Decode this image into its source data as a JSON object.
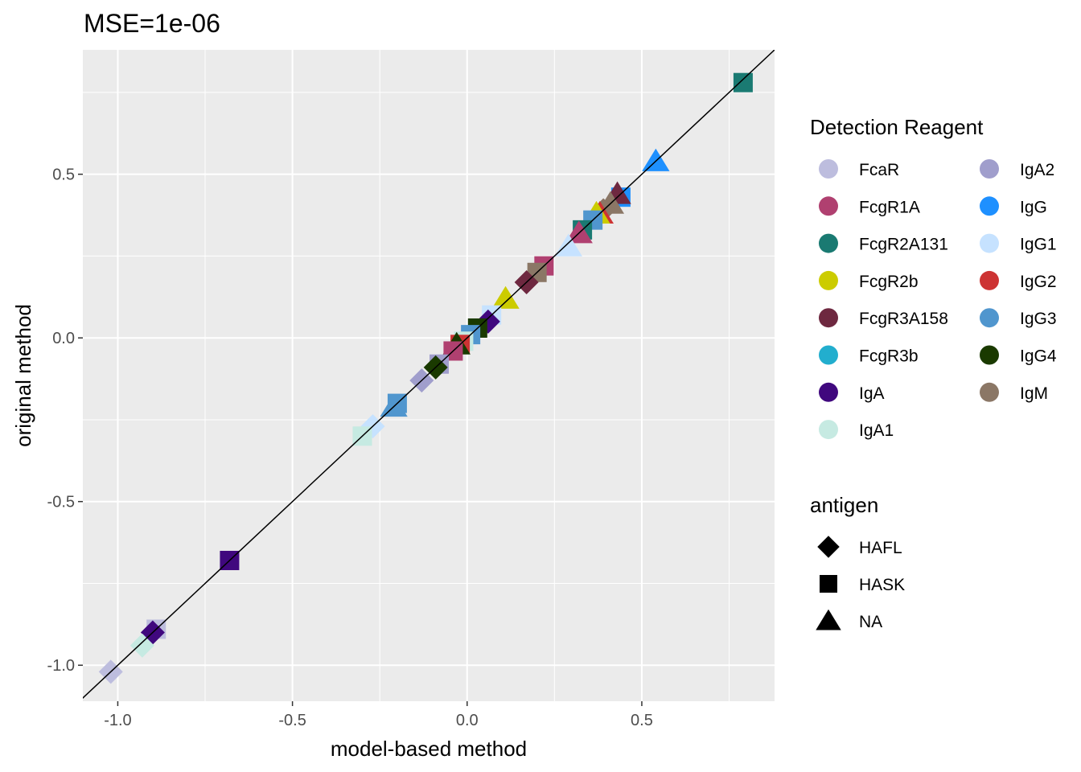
{
  "chart_data": {
    "type": "scatter",
    "title": "MSE=1e-06",
    "xlabel": "model-based method",
    "ylabel": "original method",
    "xlim": [
      -1.1,
      0.88
    ],
    "ylim": [
      -1.11,
      0.88
    ],
    "x_ticks": [
      -1.0,
      -0.5,
      0.0,
      0.5
    ],
    "x_tick_labels": [
      "-1.0",
      "-0.5",
      "0.0",
      "0.5"
    ],
    "y_ticks": [
      -1.0,
      -0.5,
      0.0,
      0.5
    ],
    "y_tick_labels": [
      "-1.0",
      "-0.5",
      "0.0",
      "0.5"
    ],
    "grid": true,
    "reference_line": {
      "slope": 1,
      "intercept": 0
    },
    "legends": {
      "color": {
        "title": "Detection Reagent",
        "placement": "right",
        "entries": [
          {
            "label": "FcaR",
            "color": "#BDBDDE"
          },
          {
            "label": "FcgR1A",
            "color": "#B04070"
          },
          {
            "label": "FcgR2A131",
            "color": "#1A7A72"
          },
          {
            "label": "FcgR2b",
            "color": "#CCCC00"
          },
          {
            "label": "FcgR3A158",
            "color": "#6E2840"
          },
          {
            "label": "FcgR3b",
            "color": "#22AECE"
          },
          {
            "label": "IgA",
            "color": "#40087E"
          },
          {
            "label": "IgA1",
            "color": "#C6EAE2"
          },
          {
            "label": "IgA2",
            "color": "#A09ECC"
          },
          {
            "label": "IgG",
            "color": "#1E90FF"
          },
          {
            "label": "IgG1",
            "color": "#C6E2FF"
          },
          {
            "label": "IgG2",
            "color": "#CD3333"
          },
          {
            "label": "IgG3",
            "color": "#5096CE"
          },
          {
            "label": "IgG4",
            "color": "#1A3A00"
          },
          {
            "label": "IgM",
            "color": "#8B7766"
          }
        ]
      },
      "shape": {
        "title": "antigen",
        "placement": "right",
        "entries": [
          {
            "label": "HAFL",
            "shape": "diamond"
          },
          {
            "label": "HASK",
            "shape": "square"
          },
          {
            "label": "NA",
            "shape": "triangle"
          }
        ]
      }
    },
    "points": [
      {
        "x": 0.79,
        "y": 0.78,
        "color": "#1A7A72",
        "shape": "square"
      },
      {
        "x": 0.54,
        "y": 0.54,
        "color": "#1E90FF",
        "shape": "triangle"
      },
      {
        "x": 0.44,
        "y": 0.43,
        "color": "#1E90FF",
        "shape": "square"
      },
      {
        "x": 0.43,
        "y": 0.44,
        "color": "#6E2840",
        "shape": "triangle"
      },
      {
        "x": 0.41,
        "y": 0.41,
        "color": "#8B7766",
        "shape": "triangle"
      },
      {
        "x": 0.39,
        "y": 0.39,
        "color": "#8B7766",
        "shape": "diamond"
      },
      {
        "x": 0.38,
        "y": 0.38,
        "color": "#CD3333",
        "shape": "triangle"
      },
      {
        "x": 0.37,
        "y": 0.38,
        "color": "#CCCC00",
        "shape": "triangle"
      },
      {
        "x": 0.36,
        "y": 0.36,
        "color": "#5096CE",
        "shape": "square"
      },
      {
        "x": 0.33,
        "y": 0.33,
        "color": "#1A7A72",
        "shape": "square"
      },
      {
        "x": 0.32,
        "y": 0.32,
        "color": "#B04070",
        "shape": "triangle"
      },
      {
        "x": 0.29,
        "y": 0.28,
        "color": "#C6E2FF",
        "shape": "triangle"
      },
      {
        "x": 0.22,
        "y": 0.22,
        "color": "#B04070",
        "shape": "square"
      },
      {
        "x": 0.2,
        "y": 0.2,
        "color": "#8B7766",
        "shape": "square"
      },
      {
        "x": 0.17,
        "y": 0.17,
        "color": "#6E2840",
        "shape": "diamond"
      },
      {
        "x": 0.11,
        "y": 0.12,
        "color": "#CCCC00",
        "shape": "triangle"
      },
      {
        "x": 0.07,
        "y": 0.07,
        "color": "#C6E2FF",
        "shape": "square"
      },
      {
        "x": 0.06,
        "y": 0.05,
        "color": "#40087E",
        "shape": "diamond"
      },
      {
        "x": 0.03,
        "y": 0.03,
        "color": "#1A3A00",
        "shape": "square"
      },
      {
        "x": 0.01,
        "y": 0.01,
        "color": "#5096CE",
        "shape": "square"
      },
      {
        "x": -0.01,
        "y": -0.01,
        "color": "#C6EAE2",
        "shape": "square"
      },
      {
        "x": -0.02,
        "y": -0.02,
        "color": "#CD3333",
        "shape": "square"
      },
      {
        "x": -0.03,
        "y": -0.02,
        "color": "#1A3A00",
        "shape": "triangle"
      },
      {
        "x": -0.04,
        "y": -0.04,
        "color": "#B04070",
        "shape": "square"
      },
      {
        "x": -0.08,
        "y": -0.08,
        "color": "#A09ECC",
        "shape": "square"
      },
      {
        "x": -0.09,
        "y": -0.09,
        "color": "#1A3A00",
        "shape": "diamond"
      },
      {
        "x": -0.13,
        "y": -0.13,
        "color": "#A09ECC",
        "shape": "diamond"
      },
      {
        "x": -0.2,
        "y": -0.2,
        "color": "#5096CE",
        "shape": "square"
      },
      {
        "x": -0.21,
        "y": -0.21,
        "color": "#5096CE",
        "shape": "triangle"
      },
      {
        "x": -0.27,
        "y": -0.27,
        "color": "#C6E2FF",
        "shape": "diamond"
      },
      {
        "x": -0.3,
        "y": -0.3,
        "color": "#C6EAE2",
        "shape": "square"
      },
      {
        "x": -0.68,
        "y": -0.68,
        "color": "#40087E",
        "shape": "square"
      },
      {
        "x": -0.89,
        "y": -0.89,
        "color": "#BDBDDE",
        "shape": "square"
      },
      {
        "x": -0.9,
        "y": -0.9,
        "color": "#40087E",
        "shape": "diamond"
      },
      {
        "x": -0.93,
        "y": -0.94,
        "color": "#C6EAE2",
        "shape": "diamond"
      },
      {
        "x": -1.02,
        "y": -1.02,
        "color": "#BDBDDE",
        "shape": "diamond"
      }
    ]
  }
}
